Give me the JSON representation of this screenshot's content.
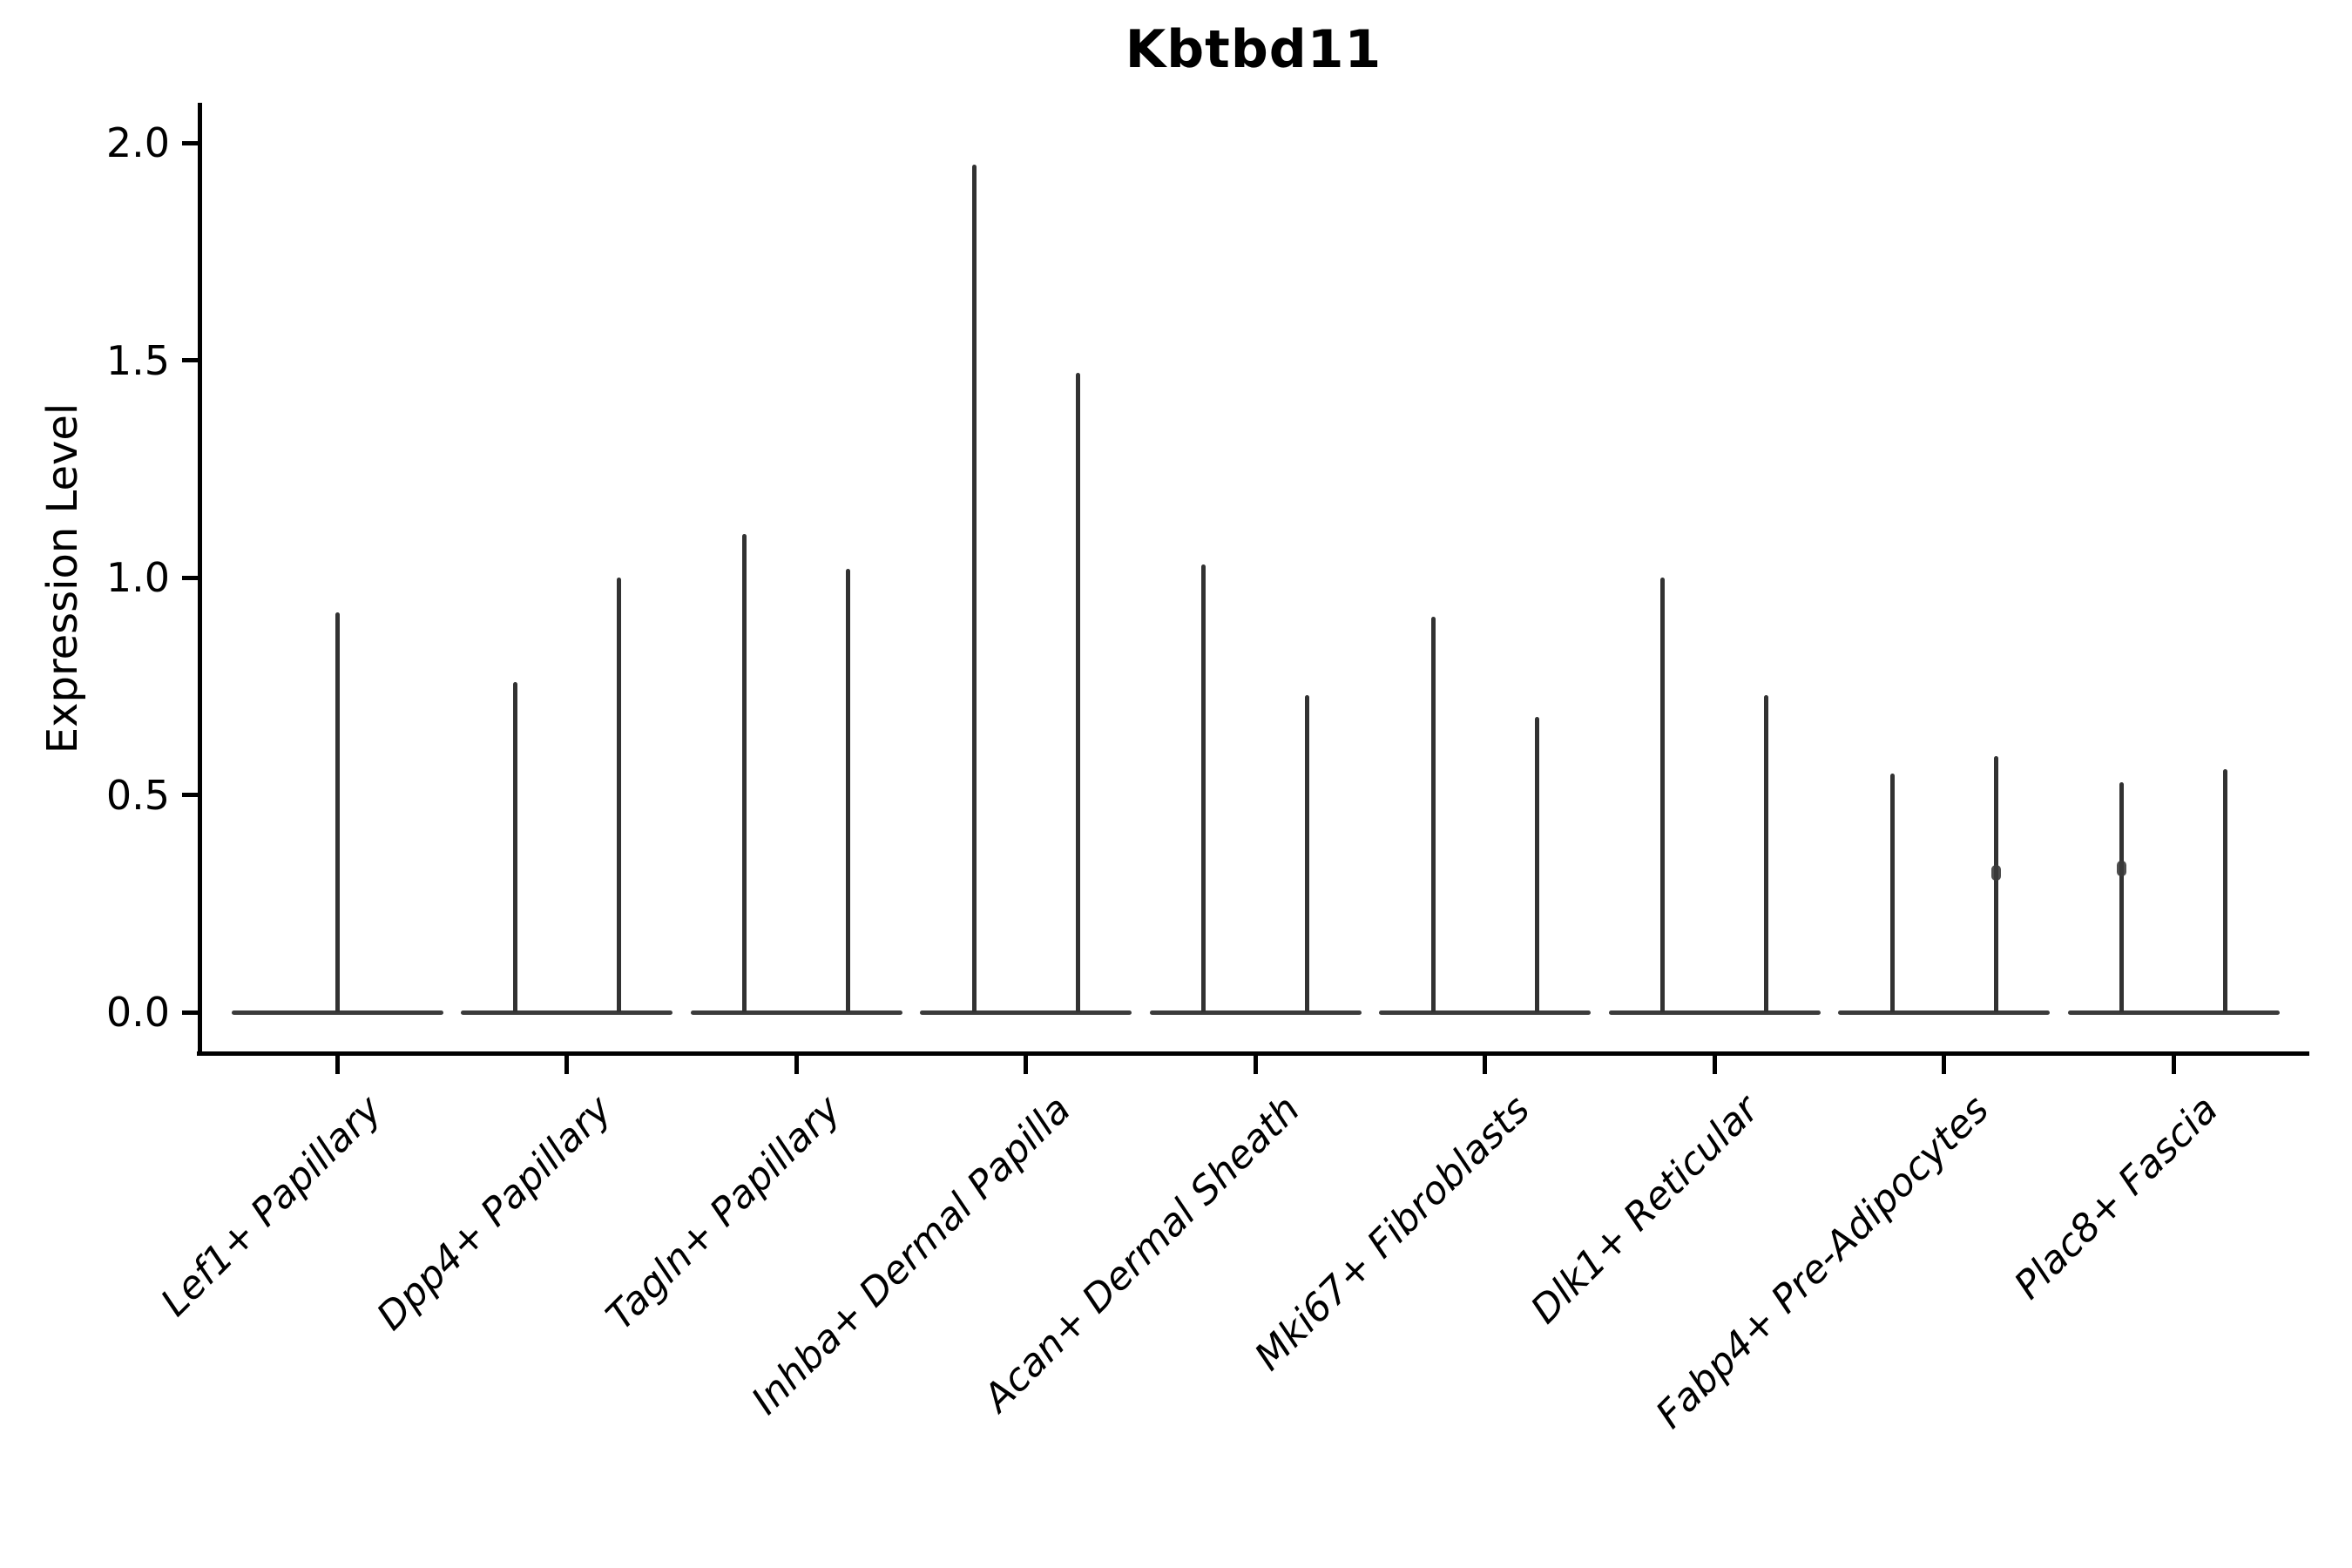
{
  "title": "Kbtbd11",
  "y_axis": {
    "label": "Expression Level",
    "tick_labels": [
      "0.0",
      "0.5",
      "1.0",
      "1.5",
      "2.0"
    ],
    "tick_values": [
      0.0,
      0.5,
      1.0,
      1.5,
      2.0
    ]
  },
  "x_axis": {
    "categories": [
      "Lef1+ Papillary",
      "Dpp4+ Papillary",
      "Tagln+ Papillary",
      "Inhba+ Dermal Papilla",
      "Acan+ Dermal Sheath",
      "Mki67+ Fibroblasts",
      "Dlk1+ Reticular",
      "Fabp4+ Pre-Adipocytes",
      "Plac8+ Fascia"
    ],
    "label_rotation_degrees": 45,
    "label_style": "italic"
  },
  "chart_data": {
    "type": "violin",
    "title": "Kbtbd11",
    "xlabel": "",
    "ylabel": "Expression Level",
    "ylim": [
      0,
      2.0
    ],
    "yticks": [
      0.0,
      0.5,
      1.0,
      1.5,
      2.0
    ],
    "ytick_labels": [
      "0.0",
      "0.5",
      "1.0",
      "1.5",
      "2.0"
    ],
    "grid": false,
    "legend": "none",
    "description": "Each category shows a violin collapsed to a flat baseline at expression 0 with thin vertical spike(s) reaching the maximum expression value; most cells have zero expression.",
    "categories": [
      "Lef1+ Papillary",
      "Dpp4+ Papillary",
      "Tagln+ Papillary",
      "Inhba+ Dermal Papilla",
      "Acan+ Dermal Sheath",
      "Mki67+ Fibroblasts",
      "Dlk1+ Reticular",
      "Fabp4+ Pre-Adipocytes",
      "Plac8+ Fascia"
    ],
    "violins": [
      {
        "category": "Lef1+ Papillary",
        "baseline_value": 0.0,
        "spikes": [
          {
            "pos": "center",
            "max": 0.92
          }
        ]
      },
      {
        "category": "Dpp4+ Papillary",
        "baseline_value": 0.0,
        "spikes": [
          {
            "pos": "left",
            "max": 0.76
          },
          {
            "pos": "right",
            "max": 1.0
          }
        ]
      },
      {
        "category": "Tagln+ Papillary",
        "baseline_value": 0.0,
        "spikes": [
          {
            "pos": "left",
            "max": 1.1
          },
          {
            "pos": "right",
            "max": 1.02
          }
        ]
      },
      {
        "category": "Inhba+ Dermal Papilla",
        "baseline_value": 0.0,
        "spikes": [
          {
            "pos": "left",
            "max": 1.95
          },
          {
            "pos": "right",
            "max": 1.47
          }
        ]
      },
      {
        "category": "Acan+ Dermal Sheath",
        "baseline_value": 0.0,
        "spikes": [
          {
            "pos": "left",
            "max": 1.03
          },
          {
            "pos": "right",
            "max": 0.73
          }
        ]
      },
      {
        "category": "Mki67+ Fibroblasts",
        "baseline_value": 0.0,
        "spikes": [
          {
            "pos": "left",
            "max": 0.91
          },
          {
            "pos": "right",
            "max": 0.68
          }
        ]
      },
      {
        "category": "Dlk1+ Reticular",
        "baseline_value": 0.0,
        "spikes": [
          {
            "pos": "left",
            "max": 1.0
          },
          {
            "pos": "right",
            "max": 0.73
          }
        ]
      },
      {
        "category": "Fabp4+ Pre-Adipocytes",
        "baseline_value": 0.0,
        "spikes": [
          {
            "pos": "left",
            "max": 0.55
          },
          {
            "pos": "right",
            "max": 0.59,
            "bump": 0.32
          }
        ]
      },
      {
        "category": "Plac8+ Fascia",
        "baseline_value": 0.0,
        "spikes": [
          {
            "pos": "left",
            "max": 0.53,
            "bump": 0.33
          },
          {
            "pos": "right",
            "max": 0.56
          }
        ]
      }
    ],
    "colors": {
      "violin_line": "#323232",
      "baseline": "#3b3b3b",
      "axis_spine": "#000000",
      "text": "#000000",
      "background": "#ffffff"
    }
  }
}
